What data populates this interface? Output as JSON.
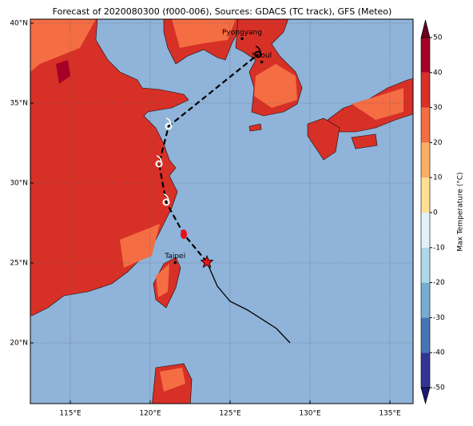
{
  "chart_data": {
    "type": "map",
    "title": "Forecast of 2020080300 (f000-006), Sources: GDACS (TC track), GFS (Meteo)",
    "xlim": [
      112.5,
      136.45
    ],
    "ylim": [
      16.2,
      40.25
    ],
    "xticks": [
      {
        "value": 115,
        "label": "115°E"
      },
      {
        "value": 120,
        "label": "120°E"
      },
      {
        "value": 125,
        "label": "125°E"
      },
      {
        "value": 130,
        "label": "130°E"
      },
      {
        "value": 135,
        "label": "135°E"
      }
    ],
    "yticks": [
      {
        "value": 20,
        "label": "20°N"
      },
      {
        "value": 25,
        "label": "25°N"
      },
      {
        "value": 30,
        "label": "30°N"
      },
      {
        "value": 35,
        "label": "35°N"
      },
      {
        "value": 40,
        "label": "40°N"
      }
    ],
    "grid": true,
    "cities": [
      {
        "name": "Pyongyang",
        "lon": 125.75,
        "lat": 39.03
      },
      {
        "name": "Seoul",
        "lon": 126.98,
        "lat": 37.57
      },
      {
        "name": "Taipei",
        "lon": 121.56,
        "lat": 25.03
      }
    ],
    "track": {
      "observed": {
        "lon": [
          128.75,
          127.9,
          126.1,
          125.0,
          124.2,
          123.7,
          123.55
        ],
        "lat": [
          20.0,
          20.9,
          22.05,
          22.6,
          23.55,
          24.7,
          25.05
        ]
      },
      "forecast": {
        "lon": [
          123.55,
          122.1,
          121.0,
          120.55,
          121.15,
          126.75
        ],
        "lat": [
          25.05,
          26.8,
          28.8,
          31.2,
          33.55,
          38.05
        ]
      }
    },
    "colorbar": {
      "label": "Max Temperature (°C)",
      "lim": [
        -50,
        50
      ],
      "ticks": [
        -50,
        -40,
        -30,
        -20,
        -10,
        0,
        10,
        20,
        30,
        40,
        50
      ],
      "colors": [
        "#313695",
        "#4575b4",
        "#74add1",
        "#abd9e9",
        "#e0f3f8",
        "#fee090",
        "#fdae61",
        "#f46d43",
        "#d73027",
        "#a50026"
      ],
      "extend_colors": [
        "#1a1a6e",
        "#67001f"
      ]
    }
  }
}
